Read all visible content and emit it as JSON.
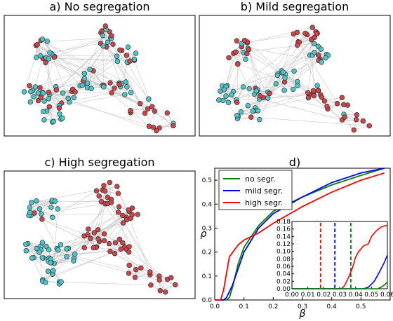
{
  "panels": {
    "a": {
      "title": "a) No segregation"
    },
    "b": {
      "title": "b) Mild segregation"
    },
    "c": {
      "title": "c) High segregation"
    },
    "d": {
      "title": "d)"
    }
  },
  "colors": {
    "node_red": "#c8474a",
    "node_cyan": "#4fc3c8",
    "edge": "#c8c8c8",
    "no_segr": "#008000",
    "mild_segr": "#0000ff",
    "high_segr": "#ff0000"
  },
  "chart_data": {
    "type": "line",
    "xlabel": "β",
    "ylabel": "ρ",
    "xlim": [
      0,
      0.6
    ],
    "ylim": [
      0,
      0.55
    ],
    "xticks": [
      "0.0",
      "0.1",
      "0.2",
      "0.3",
      "0.4",
      "0.5"
    ],
    "yticks": [
      "0.0",
      "0.1",
      "0.2",
      "0.3",
      "0.4",
      "0.5"
    ],
    "legend_position": "top-left",
    "series": [
      {
        "name": "no segr.",
        "color": "#008000",
        "x": [
          0,
          0.04,
          0.05,
          0.06,
          0.08,
          0.1,
          0.15,
          0.2,
          0.3,
          0.4,
          0.5,
          0.58
        ],
        "y": [
          0,
          0,
          0.01,
          0.05,
          0.15,
          0.22,
          0.31,
          0.37,
          0.43,
          0.48,
          0.52,
          0.55
        ]
      },
      {
        "name": "mild segr.",
        "color": "#0000ff",
        "x": [
          0,
          0.03,
          0.04,
          0.06,
          0.08,
          0.1,
          0.15,
          0.2,
          0.3,
          0.4,
          0.5,
          0.58
        ],
        "y": [
          0,
          0,
          0.01,
          0.06,
          0.13,
          0.2,
          0.3,
          0.36,
          0.43,
          0.49,
          0.53,
          0.55
        ]
      },
      {
        "name": "high segr.",
        "color": "#ff0000",
        "x": [
          0,
          0.02,
          0.03,
          0.05,
          0.08,
          0.1,
          0.15,
          0.2,
          0.3,
          0.4,
          0.5,
          0.58
        ],
        "y": [
          0,
          0,
          0.04,
          0.18,
          0.23,
          0.25,
          0.28,
          0.32,
          0.39,
          0.45,
          0.5,
          0.53
        ]
      }
    ],
    "inset": {
      "xlim": [
        0,
        0.06
      ],
      "ylim": [
        0,
        0.18
      ],
      "xticks": [
        "0.00",
        "0.01",
        "0.02",
        "0.03",
        "0.04",
        "0.05",
        "0.06"
      ],
      "yticks": [
        "0.00",
        "0.02",
        "0.04",
        "0.06",
        "0.08",
        "0.10",
        "0.12",
        "0.14",
        "0.16",
        "0.18"
      ],
      "thresholds": [
        {
          "series": "high segr.",
          "x": 0.018,
          "color": "#ff0000"
        },
        {
          "series": "mild segr.",
          "x": 0.027,
          "color": "#0000ff"
        },
        {
          "series": "no segr.",
          "x": 0.037,
          "color": "#008000"
        }
      ],
      "series": [
        {
          "name": "high segr.",
          "color": "#ff0000",
          "x": [
            0,
            0.031,
            0.033,
            0.035,
            0.038,
            0.04,
            0.042,
            0.045,
            0.048,
            0.05,
            0.053,
            0.056,
            0.06
          ],
          "y": [
            0,
            0,
            0.008,
            0.025,
            0.055,
            0.085,
            0.1,
            0.115,
            0.12,
            0.14,
            0.155,
            0.165,
            0.17
          ]
        },
        {
          "name": "mild segr.",
          "color": "#0000ff",
          "x": [
            0,
            0.045,
            0.048,
            0.05,
            0.052,
            0.055,
            0.058,
            0.06
          ],
          "y": [
            0,
            0,
            0.004,
            0.012,
            0.022,
            0.045,
            0.07,
            0.09
          ]
        },
        {
          "name": "no segr.",
          "color": "#008000",
          "x": [
            0,
            0.054,
            0.056,
            0.058,
            0.06
          ],
          "y": [
            0,
            0,
            0.004,
            0.01,
            0.018
          ]
        }
      ]
    }
  }
}
